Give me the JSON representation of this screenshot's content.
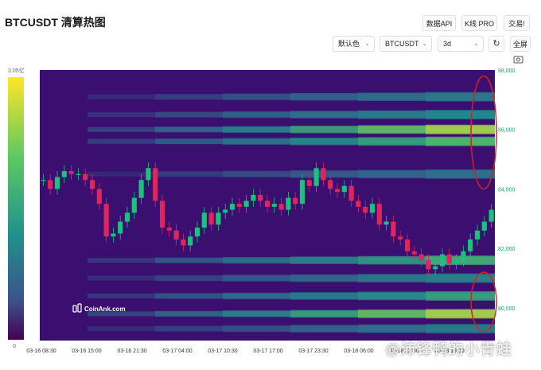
{
  "header": {
    "title": "BTCUSDT 清算热图",
    "buttons": {
      "data_api": "数据API",
      "kline_pro": "K线 PRO",
      "trade": "交易!"
    }
  },
  "controls": {
    "color_scheme": "默认色",
    "symbol": "BTCUSDT",
    "range": "3d",
    "fullscreen": "全屏"
  },
  "colorbar": {
    "max_label": "3.05亿",
    "min_label": "0"
  },
  "logo_text": "CoinAnk.com",
  "watermark": "@沛锋鸭的小青蛙",
  "colors": {
    "low": "#3b0f70",
    "mid": "#21918c",
    "high": "#fde725",
    "candle_up": "#19c37d",
    "candle_down": "#e0245e",
    "highlight": "#d42020"
  },
  "chart_data": {
    "type": "heatmap",
    "x_tick_labels": [
      "03-16 08:30",
      "03-16 15:00",
      "03-16 21:30",
      "03-17 04:00",
      "03-17 10:30",
      "03-17 17:00",
      "03-17 23:30",
      "03-18 06:00",
      "03-18 12:30",
      "03-18 19:00"
    ],
    "y_tick_labels": [
      "88,000",
      "86,000",
      "84,000",
      "82,000",
      "80,000"
    ],
    "y_ticks": [
      88000,
      86000,
      84000,
      82000,
      80000
    ],
    "ylim": [
      78900,
      88000
    ],
    "price_path": [
      84300,
      84000,
      84400,
      84600,
      84500,
      84500,
      84300,
      84000,
      83500,
      82400,
      82500,
      82900,
      83200,
      83700,
      84300,
      84700,
      83600,
      82700,
      82600,
      82300,
      82100,
      82400,
      82700,
      83200,
      82800,
      83200,
      83300,
      83500,
      83400,
      83600,
      83800,
      83600,
      83400,
      83500,
      83300,
      83700,
      83500,
      84300,
      84100,
      84700,
      84300,
      84000,
      83900,
      84100,
      83600,
      83400,
      83200,
      83500,
      82800,
      82900,
      82400,
      82300,
      81900,
      81800,
      81600,
      81300,
      81400,
      81800,
      81500,
      81600,
      81900,
      82300,
      82600,
      82900,
      83300
    ],
    "liquidation_bands": [
      {
        "price": 86000,
        "intensity": 0.95
      },
      {
        "price": 85600,
        "intensity": 0.8
      },
      {
        "price": 86500,
        "intensity": 0.6
      },
      {
        "price": 87100,
        "intensity": 0.5
      },
      {
        "price": 84500,
        "intensity": 0.45
      },
      {
        "price": 81600,
        "intensity": 0.75
      },
      {
        "price": 81000,
        "intensity": 0.55
      },
      {
        "price": 80400,
        "intensity": 0.7
      },
      {
        "price": 79800,
        "intensity": 0.95
      },
      {
        "price": 79300,
        "intensity": 0.5
      }
    ],
    "highlighted_zones": [
      {
        "price_from": 84000,
        "price_to": 87800
      },
      {
        "price_from": 79200,
        "price_to": 81200
      }
    ]
  }
}
